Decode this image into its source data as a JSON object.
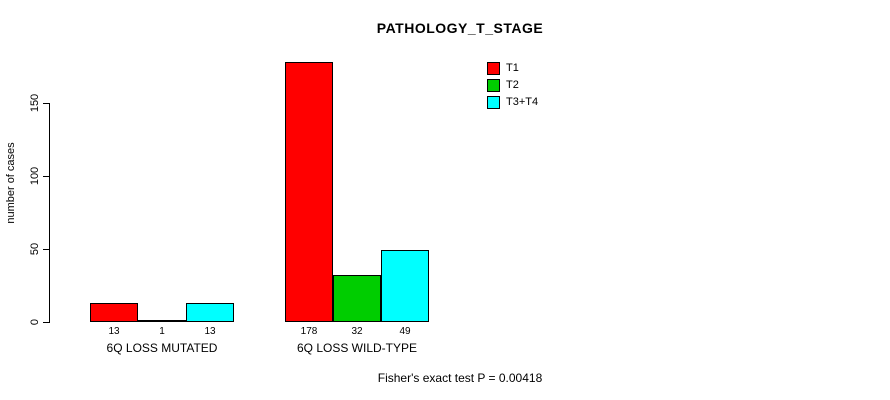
{
  "title": "PATHOLOGY_T_STAGE",
  "ylabel": "number of cases",
  "footer": "Fisher's exact test P = 0.00418",
  "chart_data": {
    "type": "bar",
    "title": "PATHOLOGY_T_STAGE",
    "xlabel": "",
    "ylabel": "number of cases",
    "categories": [
      "6Q LOSS MUTATED",
      "6Q LOSS WILD-TYPE"
    ],
    "series": [
      {
        "name": "T1",
        "color": "#FF0000",
        "values": [
          13,
          178
        ]
      },
      {
        "name": "T2",
        "color": "#00CD00",
        "values": [
          1,
          32
        ]
      },
      {
        "name": "T3+T4",
        "color": "#00FFFF",
        "values": [
          13,
          49
        ]
      }
    ],
    "value_labels": [
      [
        "13",
        "1",
        "13"
      ],
      [
        "178",
        "32",
        "49"
      ]
    ],
    "ylim": [
      0,
      180
    ],
    "yticks": [
      0,
      50,
      100,
      150
    ],
    "grid": false,
    "legend_position": "top-right",
    "annotation": "Fisher's exact test P = 0.00418"
  }
}
